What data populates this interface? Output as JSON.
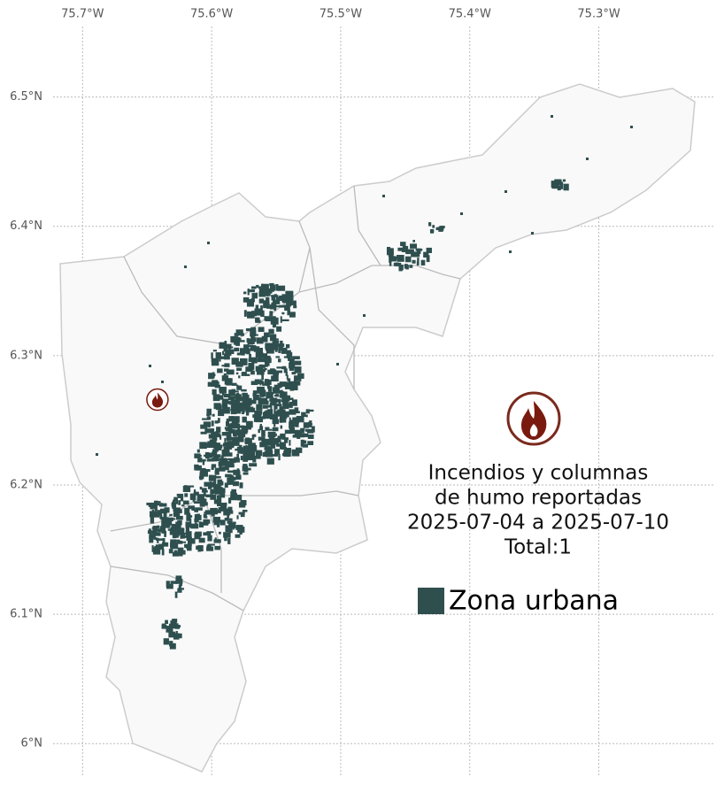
{
  "chart_data": {
    "type": "map",
    "xlim": [
      -75.764,
      -75.203
    ],
    "ylim": [
      5.968,
      6.575
    ],
    "xticks": [
      {
        "value": -75.7,
        "label": "75.7°W"
      },
      {
        "value": -75.6,
        "label": "75.6°W"
      },
      {
        "value": -75.5,
        "label": "75.5°W"
      },
      {
        "value": -75.4,
        "label": "75.4°W"
      },
      {
        "value": -75.3,
        "label": "75.3°W"
      }
    ],
    "yticks": [
      {
        "value": 6.0,
        "label": "6°N"
      },
      {
        "value": 6.1,
        "label": "6.1°N"
      },
      {
        "value": 6.2,
        "label": "6.2°N"
      },
      {
        "value": 6.3,
        "label": "6.3°N"
      },
      {
        "value": 6.4,
        "label": "6.4°N"
      },
      {
        "value": 6.5,
        "label": "6.5°N"
      }
    ],
    "grid": true,
    "annotation": [
      "Incendios y columnas",
      "de humo reportadas",
      "2025-07-04 a 2025-07-10",
      "Total:1"
    ],
    "legend": {
      "name": "Zona urbana",
      "color": "#2f4f4f"
    },
    "points": {
      "lon": [
        -75.642
      ],
      "lat": [
        6.266
      ],
      "color": "#7a1a0e"
    }
  }
}
